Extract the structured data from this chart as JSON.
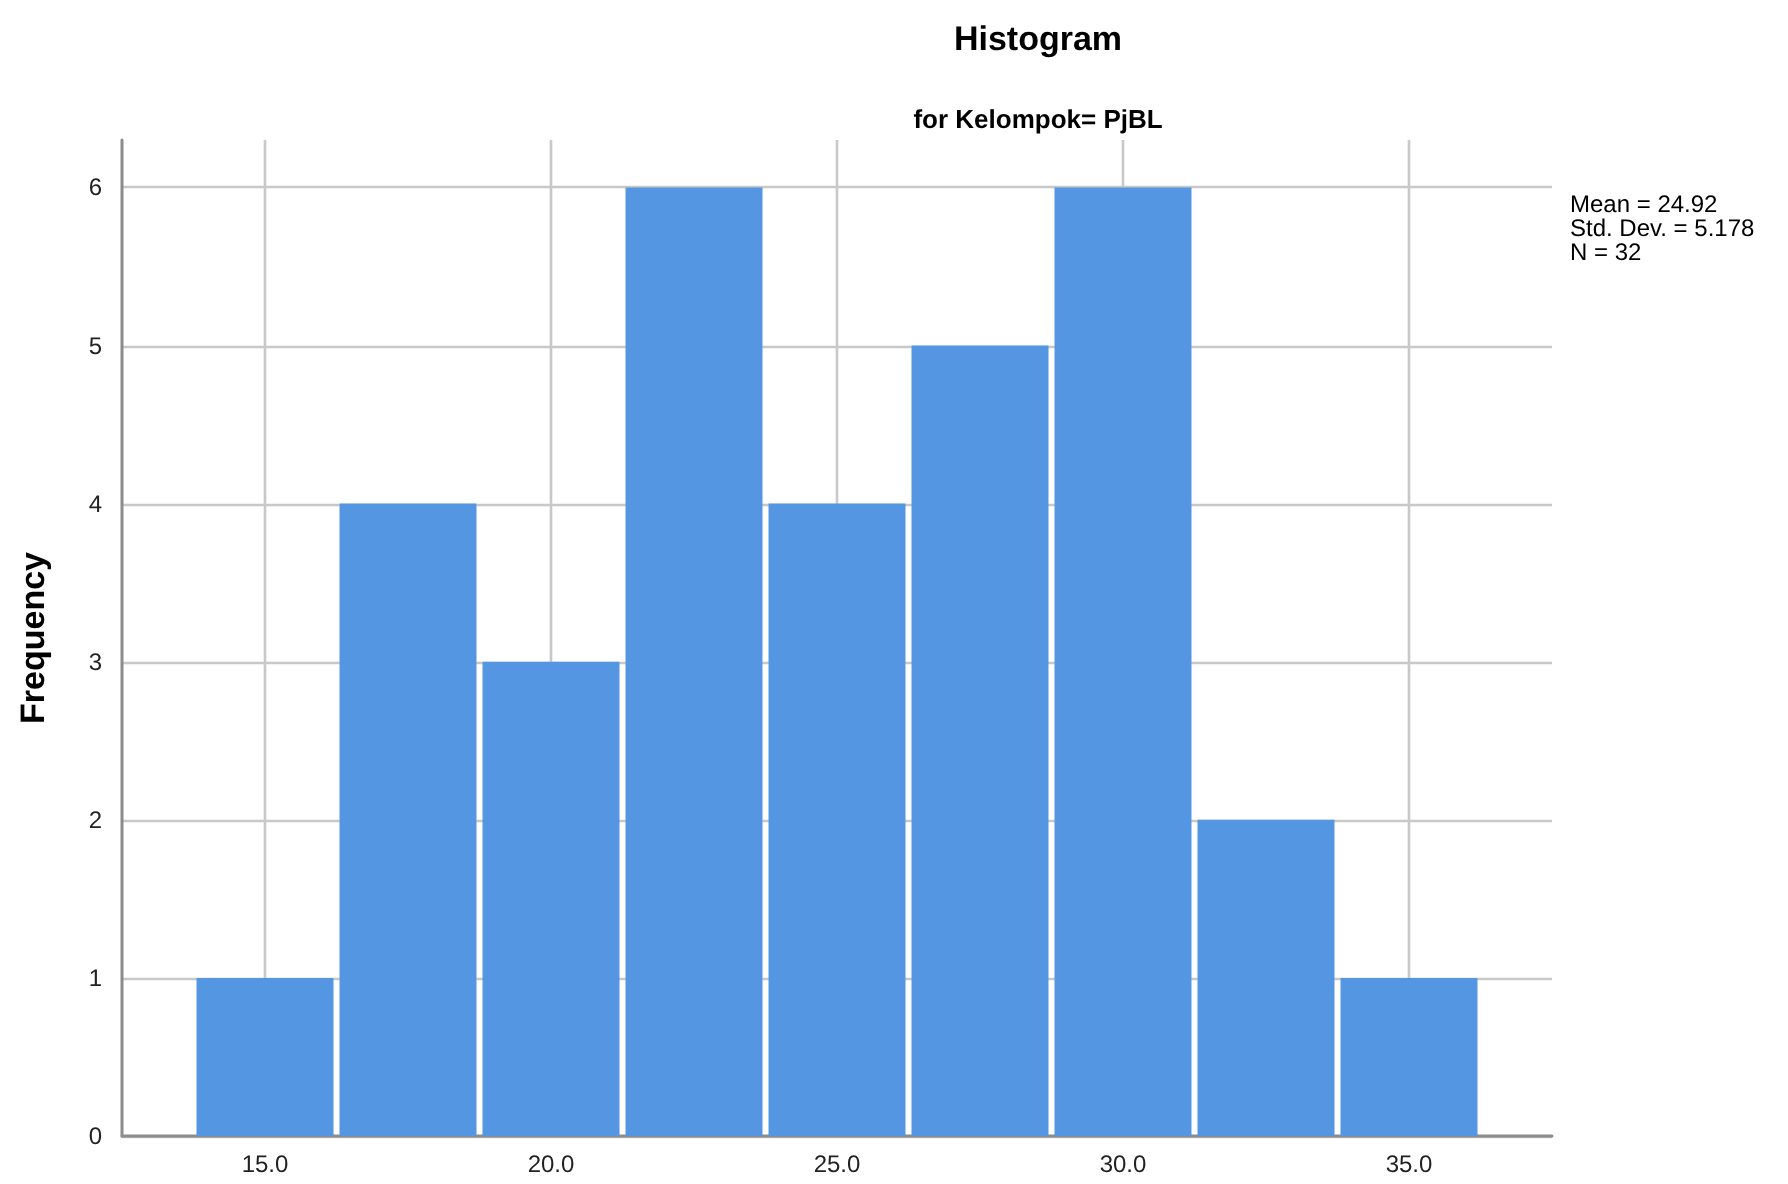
{
  "chart_data": {
    "type": "histogram",
    "title": "Histogram",
    "subtitle": "for Kelompok= PjBL",
    "ylabel": "Frequency",
    "bins": [
      13.75,
      16.25,
      18.75,
      21.25,
      23.75,
      26.25,
      28.75,
      31.25,
      33.75,
      36.25
    ],
    "values": [
      1,
      4,
      3,
      6,
      4,
      5,
      6,
      2,
      1
    ],
    "color": "#5596e3",
    "xlim": [
      12.5,
      37.5
    ],
    "xticks": [
      {
        "value": 15,
        "label": "15.0"
      },
      {
        "value": 20,
        "label": "20.0"
      },
      {
        "value": 25,
        "label": "25.0"
      },
      {
        "value": 30,
        "label": "30.0"
      },
      {
        "value": 35,
        "label": "35.0"
      }
    ],
    "ylim": [
      0,
      6.3
    ],
    "yticks": [
      0,
      1,
      2,
      3,
      4,
      5,
      6
    ],
    "grid": true,
    "annotations": [
      "Mean = 24.92",
      "Std. Dev. = 5.178",
      "N = 32"
    ]
  }
}
